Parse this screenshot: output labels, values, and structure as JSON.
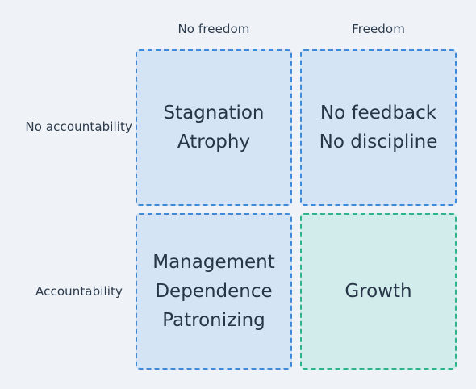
{
  "columns": [
    "No freedom",
    "Freedom"
  ],
  "rows": [
    "No accountability",
    "Accountability"
  ],
  "cells": [
    {
      "lines": [
        "Stagnation",
        "Atrophy"
      ],
      "style": "blue"
    },
    {
      "lines": [
        "No feedback",
        "No discipline"
      ],
      "style": "blue"
    },
    {
      "lines": [
        "Management",
        "Dependence",
        "Patronizing"
      ],
      "style": "blue"
    },
    {
      "lines": [
        "Growth"
      ],
      "style": "green"
    }
  ],
  "colors": {
    "background": "#eff3f7",
    "cell_fill": "#d4e4f5",
    "cell_border": "#3f8ad8",
    "growth_fill": "#d1ecea",
    "growth_border": "#2fb38a",
    "text": "#273548"
  }
}
